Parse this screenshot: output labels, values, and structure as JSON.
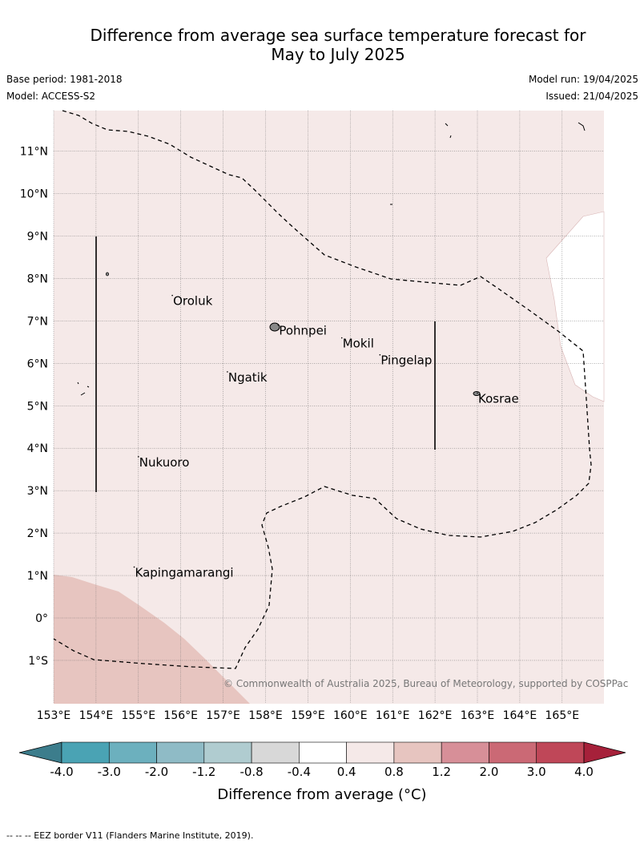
{
  "header": {
    "title_line1": "Difference from average sea surface temperature forecast for",
    "title_line2": "May to July 2025",
    "base_period": "Base period: 1981-2018",
    "model": "Model: ACCESS-S2",
    "model_run": "Model run: 19/04/2025",
    "issued": "Issued: 21/04/2025"
  },
  "map": {
    "lon_labels": [
      "153°E",
      "154°E",
      "155°E",
      "156°E",
      "157°E",
      "158°E",
      "159°E",
      "160°E",
      "161°E",
      "162°E",
      "163°E",
      "164°E",
      "165°E"
    ],
    "lat_labels": [
      "11°N",
      "10°N",
      "9°N",
      "8°N",
      "7°N",
      "6°N",
      "5°N",
      "4°N",
      "3°N",
      "2°N",
      "1°N",
      "0°",
      "1°S"
    ],
    "places": [
      {
        "name": "Oroluk",
        "lon": 155.8,
        "lat": 7.6
      },
      {
        "name": "Pohnpei",
        "lon": 158.3,
        "lat": 6.9
      },
      {
        "name": "Mokil",
        "lon": 159.8,
        "lat": 6.6
      },
      {
        "name": "Pingelap",
        "lon": 160.7,
        "lat": 6.2
      },
      {
        "name": "Ngatik",
        "lon": 157.1,
        "lat": 5.8
      },
      {
        "name": "Kosrae",
        "lon": 163.0,
        "lat": 5.3
      },
      {
        "name": "Nukuoro",
        "lon": 155.0,
        "lat": 3.8
      },
      {
        "name": "Kapingamarangi",
        "lon": 154.9,
        "lat": 1.2
      }
    ],
    "copyright": "© Commonwealth of Australia 2025, Bureau of Meteorology, supported by COSPPac",
    "colors": {
      "light_warm": "#f5e9e8",
      "warm": "#e7c5c0",
      "white": "#ffffff"
    }
  },
  "colorbar": {
    "ticks": [
      "-4.0",
      "-3.0",
      "-2.0",
      "-1.2",
      "-0.8",
      "-0.4",
      "0.4",
      "0.8",
      "1.2",
      "2.0",
      "3.0",
      "4.0"
    ],
    "colors": [
      "#3c7d8c",
      "#4aa3b4",
      "#6cb0be",
      "#8fbbc6",
      "#b0ccd0",
      "#d8d8d8",
      "#ffffff",
      "#f5e9e8",
      "#e7c5c0",
      "#d78f98",
      "#cb6975",
      "#bf4758",
      "#a6213a"
    ],
    "label": "Difference from average (°C)"
  },
  "footnote": "--  --  -- EEZ border V11 (Flanders Marine Institute, 2019)."
}
